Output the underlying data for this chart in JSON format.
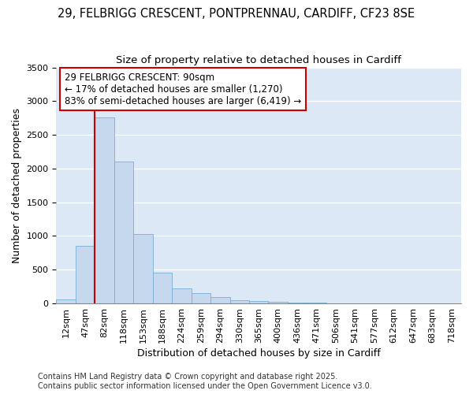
{
  "title_line1": "29, FELBRIGG CRESCENT, PONTPRENNAU, CARDIFF, CF23 8SE",
  "title_line2": "Size of property relative to detached houses in Cardiff",
  "xlabel": "Distribution of detached houses by size in Cardiff",
  "ylabel": "Number of detached properties",
  "bar_color": "#c5d8ee",
  "bar_edge_color": "#7aafd4",
  "plot_bg_color": "#dce8f5",
  "fig_bg_color": "#ffffff",
  "grid_color": "#ffffff",
  "categories": [
    "12sqm",
    "47sqm",
    "82sqm",
    "118sqm",
    "153sqm",
    "188sqm",
    "224sqm",
    "259sqm",
    "294sqm",
    "330sqm",
    "365sqm",
    "400sqm",
    "436sqm",
    "471sqm",
    "506sqm",
    "541sqm",
    "577sqm",
    "612sqm",
    "647sqm",
    "683sqm",
    "718sqm"
  ],
  "values": [
    55,
    850,
    2760,
    2100,
    1030,
    460,
    220,
    155,
    100,
    50,
    35,
    25,
    15,
    8,
    5,
    3,
    2,
    1,
    1,
    1,
    0
  ],
  "ylim": [
    0,
    3500
  ],
  "yticks": [
    0,
    500,
    1000,
    1500,
    2000,
    2500,
    3000,
    3500
  ],
  "annotation_title": "29 FELBRIGG CRESCENT: 90sqm",
  "annotation_line2": "← 17% of detached houses are smaller (1,270)",
  "annotation_line3": "83% of semi-detached houses are larger (6,419) →",
  "vline_color": "#cc0000",
  "vline_x_idx": 2,
  "footnote_line1": "Contains HM Land Registry data © Crown copyright and database right 2025.",
  "footnote_line2": "Contains public sector information licensed under the Open Government Licence v3.0.",
  "title_fontsize": 10.5,
  "subtitle_fontsize": 9.5,
  "axis_label_fontsize": 9,
  "tick_fontsize": 8,
  "annotation_fontsize": 8.5,
  "footnote_fontsize": 7
}
